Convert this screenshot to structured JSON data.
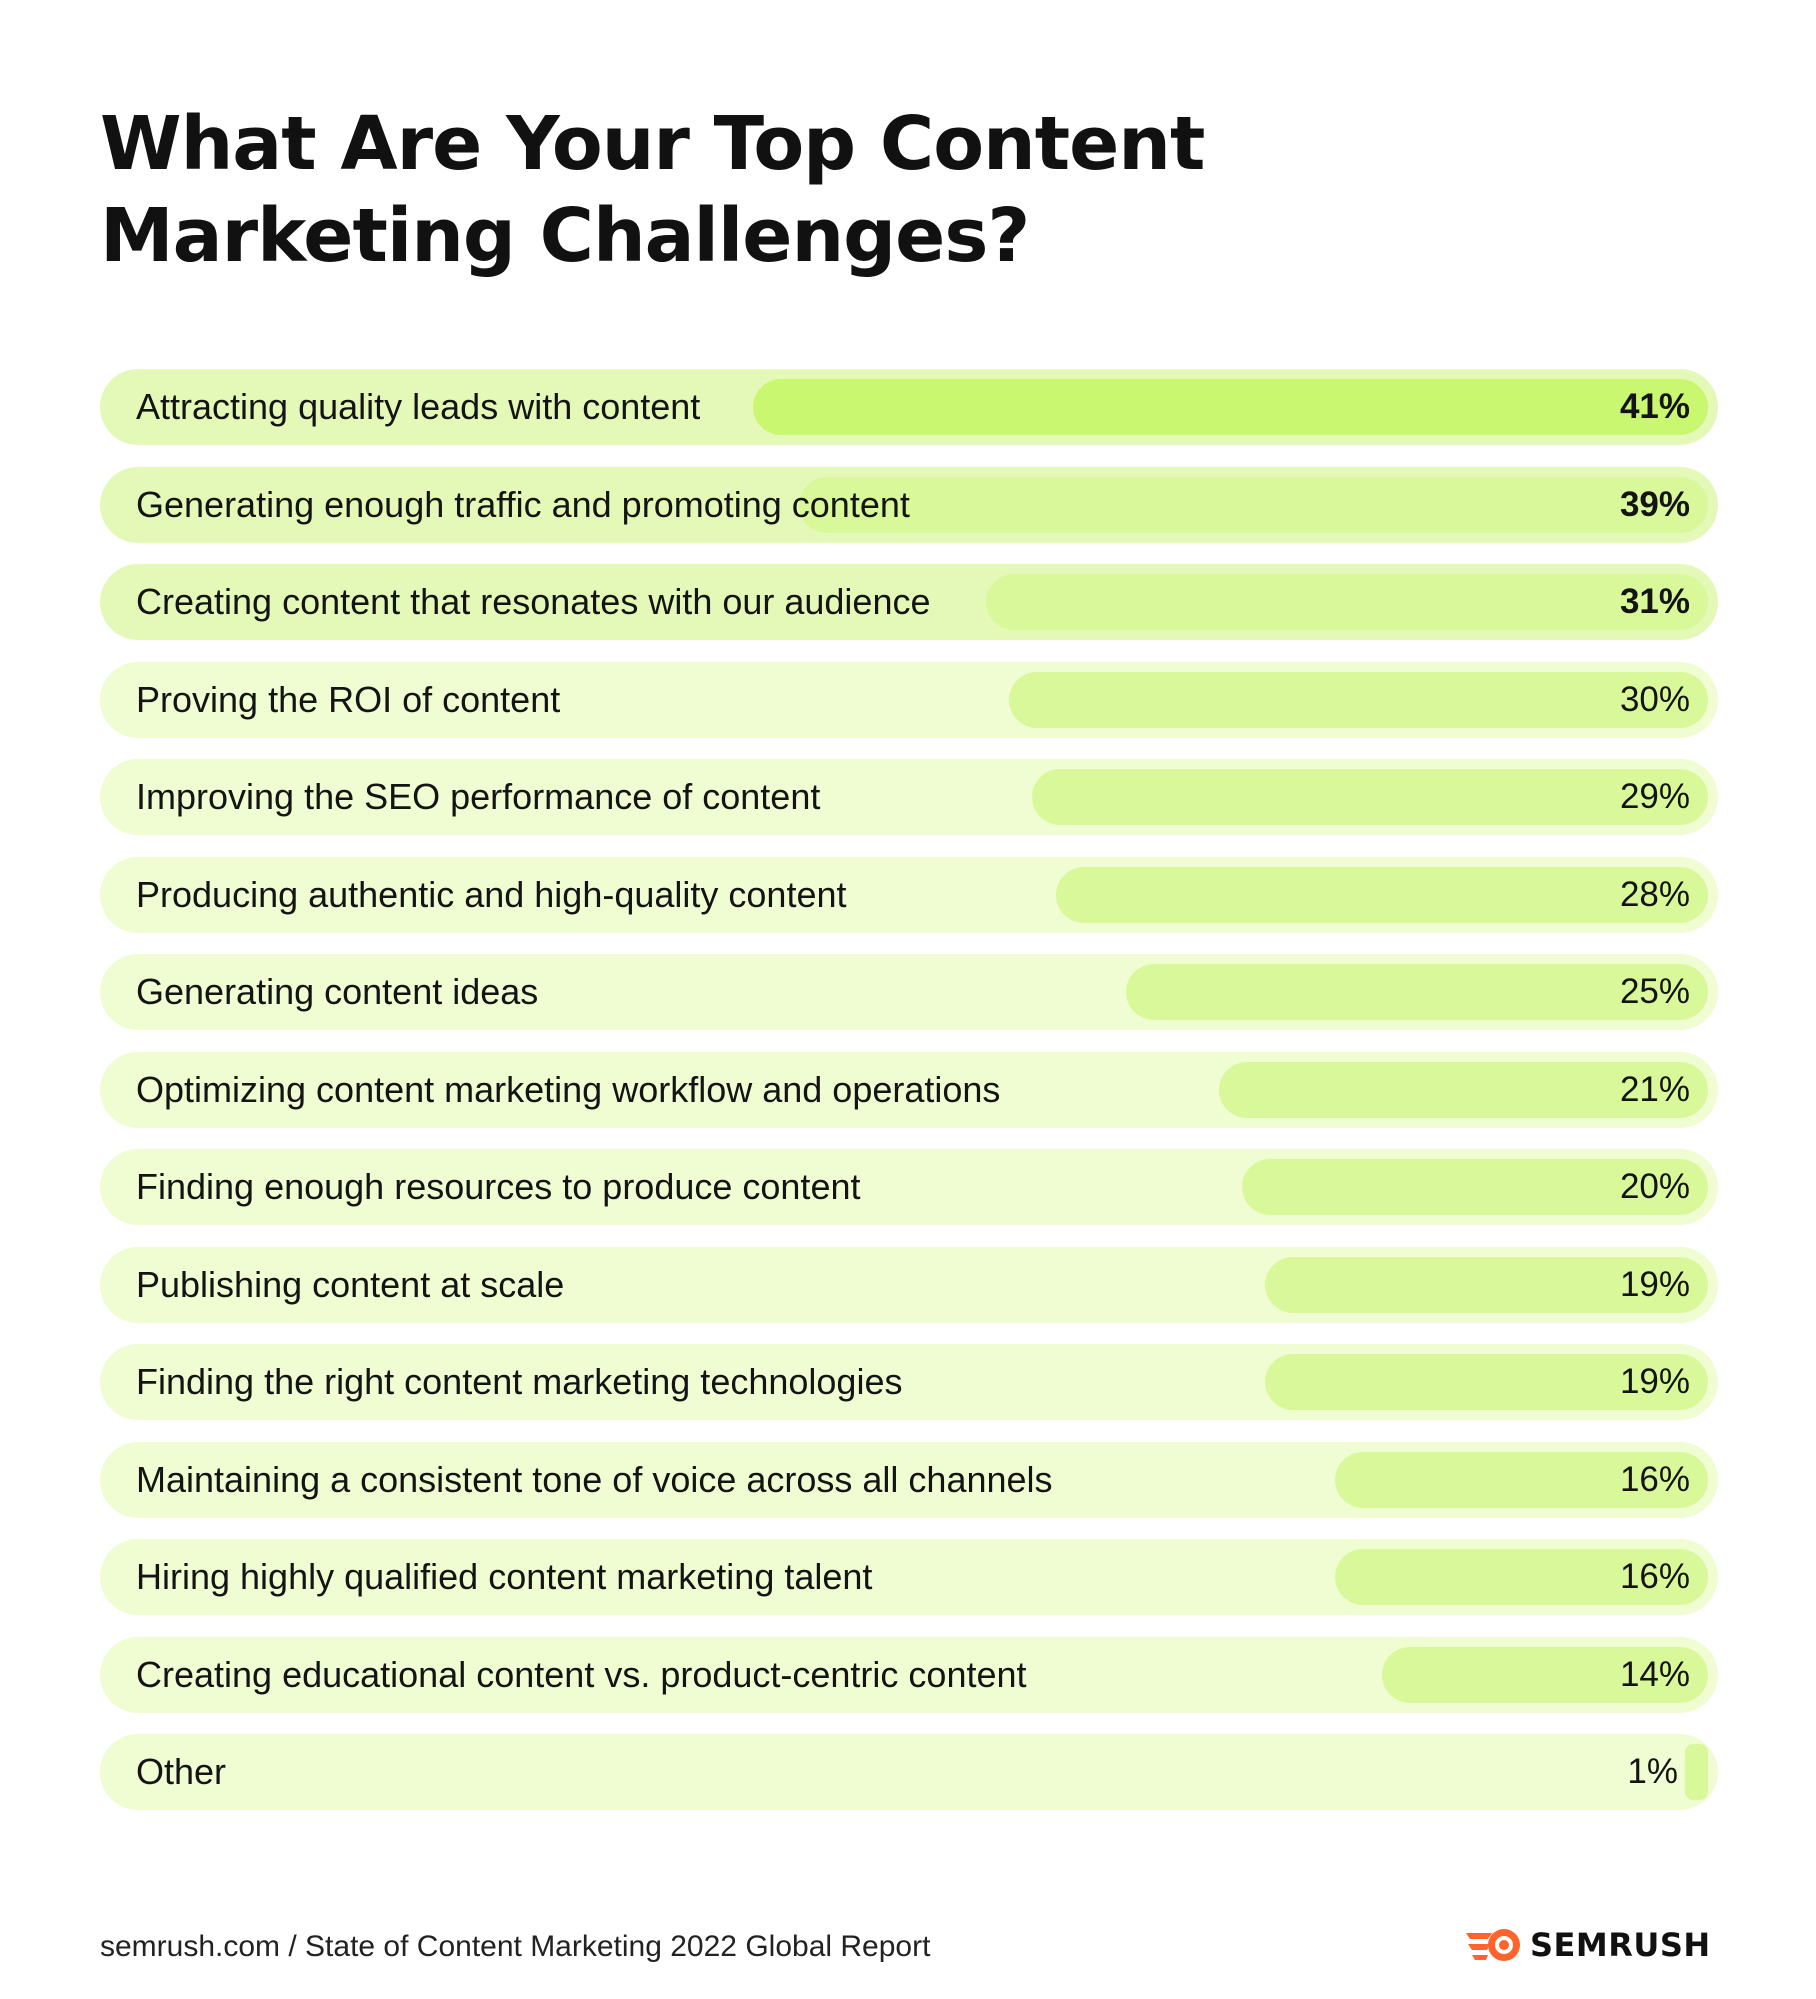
{
  "title": "What Are Your Top Content Marketing Challenges?",
  "chart_data": {
    "type": "bar",
    "orientation": "horizontal",
    "title": "What Are Your Top Content Marketing Challenges?",
    "categories": [
      "Attracting quality leads with content",
      "Generating enough traffic and promoting content",
      "Creating content that resonates with our audience",
      "Proving the ROI of content",
      "Improving the SEO performance of content",
      "Producing authentic and high-quality content",
      "Generating content ideas",
      "Optimizing content marketing workflow and operations",
      "Finding enough resources to produce content",
      "Publishing content at scale",
      "Finding the right content marketing technologies",
      "Maintaining a consistent tone of voice across all channels",
      "Hiring highly qualified content marketing talent",
      "Creating educational content vs. product-centric content",
      "Other"
    ],
    "values": [
      41,
      39,
      31,
      30,
      29,
      28,
      25,
      21,
      20,
      19,
      19,
      16,
      16,
      14,
      1
    ],
    "value_labels": [
      "41%",
      "39%",
      "31%",
      "30%",
      "29%",
      "28%",
      "25%",
      "21%",
      "20%",
      "19%",
      "19%",
      "16%",
      "16%",
      "14%",
      "1%"
    ],
    "unit": "%",
    "xlim": [
      0,
      100
    ],
    "grid": false,
    "legend": "none",
    "highlighted_top": 3,
    "colors": {
      "row_background_top": "#e4f9b7",
      "row_background": "#f0fcd2",
      "bar_first": "#c9f76f",
      "bar": "#d9f89a",
      "text": "#141414"
    }
  },
  "footer": {
    "source": "semrush.com / State of Content Marketing 2022 Global Report",
    "brand": "SEMRUSH",
    "brand_color": "#ff642d"
  }
}
